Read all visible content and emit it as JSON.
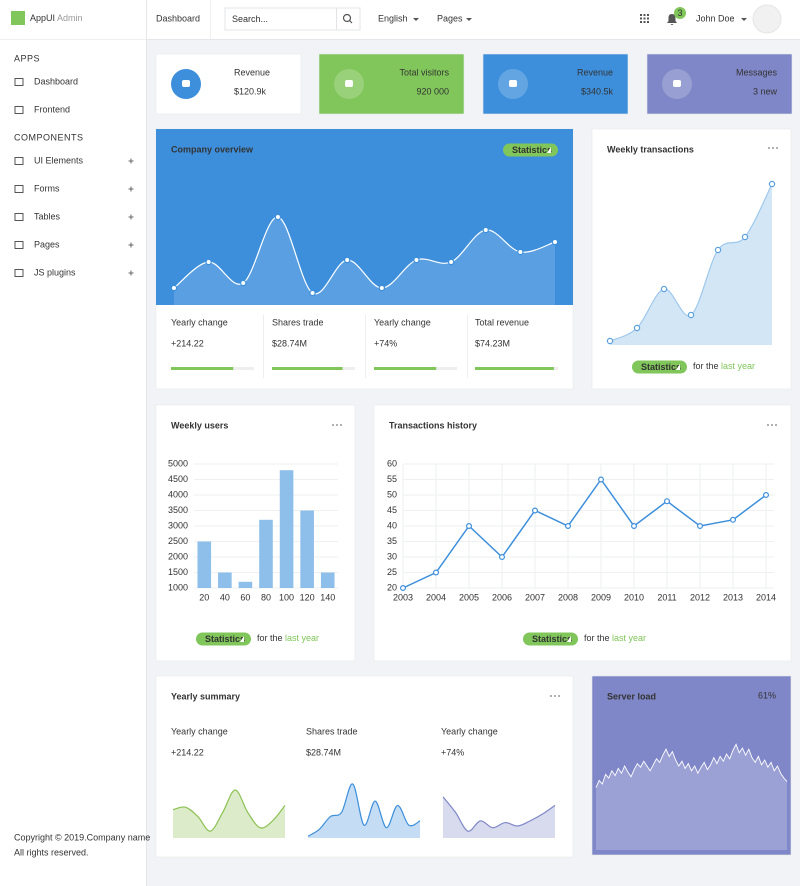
{
  "brand": {
    "name": "AppUI",
    "suffix": "Admin"
  },
  "topbar": {
    "title": "Dashboard",
    "search_placeholder": "Search...",
    "language": "English",
    "pages": "Pages",
    "notifications": 3,
    "user": "John Doe"
  },
  "sidebar": {
    "sections": [
      {
        "title": "APPS",
        "items": [
          {
            "label": "Dashboard"
          },
          {
            "label": "Frontend"
          }
        ]
      },
      {
        "title": "COMPONENTS",
        "items": [
          {
            "label": "UI Elements"
          },
          {
            "label": "Forms"
          },
          {
            "label": "Tables"
          },
          {
            "label": "Pages"
          },
          {
            "label": "JS plugins"
          }
        ]
      }
    ]
  },
  "footer": [
    "Copyright © 2019.Company name",
    "All rights reserved."
  ],
  "stats": [
    {
      "label": "Revenue",
      "value": "$120.9k"
    },
    {
      "label": "Total visitors",
      "value": "920 000"
    },
    {
      "label": "Revenue",
      "value": "$340.5k"
    },
    {
      "label": "Messages",
      "value": "3 new"
    }
  ],
  "company_overview": {
    "title": "Company overview",
    "badge": "Statistics",
    "chart": {
      "type": "area",
      "values": [
        17,
        43,
        22,
        88,
        12,
        45,
        17,
        45,
        43,
        75,
        53,
        63
      ],
      "ylim": [
        0,
        140
      ],
      "color": "#ffffff"
    },
    "metrics": [
      {
        "label": "Yearly change",
        "value": "+214.22",
        "progress": 75
      },
      {
        "label": "Shares trade",
        "value": "$28.74M",
        "progress": 85
      },
      {
        "label": "Yearly change",
        "value": "+74%",
        "progress": 75
      },
      {
        "label": "Total revenue",
        "value": "$74.23M",
        "progress": 95
      }
    ]
  },
  "weekly_transactions": {
    "title": "Weekly transactions",
    "badge": "Statistics",
    "note": "for the",
    "note_link": "last year",
    "chart": {
      "type": "area",
      "values": [
        4,
        17,
        56,
        30,
        95,
        108,
        161
      ],
      "ylim": [
        0,
        170
      ],
      "color": "#9ec8ec"
    }
  },
  "weekly_users": {
    "title": "Weekly users",
    "badge": "Statistics",
    "note": "for the",
    "note_link": "last year",
    "chart": {
      "type": "bar",
      "categories": [
        20,
        40,
        60,
        80,
        100,
        120,
        140
      ],
      "values": [
        2500,
        1500,
        1200,
        3200,
        4800,
        3500,
        1500
      ],
      "ylim": [
        1000,
        5000
      ],
      "yticks": [
        1000,
        1500,
        2000,
        2500,
        3000,
        3500,
        4000,
        4500,
        5000
      ],
      "grid": true,
      "color": "#8ebfea"
    }
  },
  "transactions_history": {
    "title": "Transactions history",
    "badge": "Statistics",
    "note": "for the",
    "note_link": "last year",
    "chart": {
      "type": "line",
      "x": [
        2003,
        2004,
        2005,
        2006,
        2007,
        2008,
        2009,
        2010,
        2011,
        2012,
        2013,
        2014
      ],
      "values": [
        20,
        25,
        40,
        30,
        45,
        40,
        55,
        40,
        48,
        40,
        42,
        50
      ],
      "xlim": [
        2003,
        2014
      ],
      "xticks": [
        2003,
        2004,
        2005,
        2006,
        2007,
        2008,
        2009,
        2010,
        2011,
        2012,
        2013,
        2014
      ],
      "ylim": [
        20,
        60
      ],
      "yticks": [
        20,
        25,
        30,
        35,
        40,
        45,
        50,
        55,
        60
      ],
      "grid": true,
      "color": "#3d8fdc"
    }
  },
  "yearly_summary": {
    "title": "Yearly summary",
    "items": [
      {
        "label": "Yearly change",
        "value": "+214.22",
        "chart": {
          "type": "area",
          "values": [
            33,
            36,
            25,
            8,
            30,
            56,
            30,
            12,
            20,
            38
          ],
          "ylim": [
            0,
            70
          ],
          "color": "#8cc152"
        }
      },
      {
        "label": "Shares trade",
        "value": "$28.74M",
        "chart": {
          "type": "area",
          "values": [
            2,
            10,
            25,
            30,
            63,
            15,
            43,
            12,
            38,
            15,
            20
          ],
          "ylim": [
            0,
            70
          ],
          "color": "#3d8fdc"
        }
      },
      {
        "label": "Yearly change",
        "value": "+74%",
        "chart": {
          "type": "area",
          "values": [
            48,
            30,
            8,
            20,
            12,
            18,
            14,
            20,
            28,
            38
          ],
          "ylim": [
            0,
            70
          ],
          "color": "#7f87c8"
        }
      }
    ]
  },
  "server_load": {
    "title": "Server load",
    "value": "61%",
    "chart": {
      "type": "line",
      "values": [
        52,
        58,
        55,
        63,
        60,
        66,
        62,
        68,
        64,
        70,
        65,
        61,
        67,
        72,
        69,
        74,
        70,
        66,
        71,
        76,
        73,
        79,
        84,
        78,
        82,
        75,
        70,
        74,
        68,
        72,
        66,
        70,
        64,
        69,
        73,
        67,
        71,
        77,
        72,
        78,
        74,
        80,
        76,
        83,
        88,
        81,
        85,
        79,
        84,
        77,
        73,
        78,
        71,
        75,
        69,
        73,
        66,
        70,
        64,
        60,
        57
      ],
      "ylim": [
        0,
        100
      ],
      "color": "#ffffff"
    }
  }
}
